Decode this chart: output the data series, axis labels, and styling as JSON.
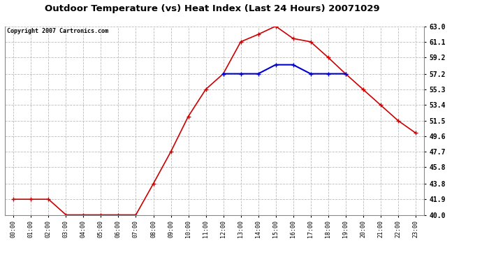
{
  "title": "Outdoor Temperature (vs) Heat Index (Last 24 Hours) 20071029",
  "copyright": "Copyright 2007 Cartronics.com",
  "x_labels": [
    "00:00",
    "01:00",
    "02:00",
    "03:00",
    "04:00",
    "05:00",
    "06:00",
    "07:00",
    "08:00",
    "09:00",
    "10:00",
    "11:00",
    "12:00",
    "13:00",
    "14:00",
    "15:00",
    "16:00",
    "17:00",
    "18:00",
    "19:00",
    "20:00",
    "21:00",
    "22:00",
    "23:00"
  ],
  "temp_red": [
    41.9,
    41.9,
    41.9,
    40.0,
    40.0,
    40.0,
    40.0,
    40.0,
    43.8,
    47.7,
    52.0,
    55.3,
    57.2,
    61.1,
    62.0,
    63.0,
    61.5,
    61.1,
    59.2,
    57.2,
    55.3,
    53.4,
    51.5,
    50.0
  ],
  "heat_blue": [
    null,
    null,
    null,
    null,
    null,
    null,
    null,
    null,
    null,
    null,
    null,
    null,
    57.2,
    57.2,
    57.2,
    58.3,
    58.3,
    57.2,
    57.2,
    57.2,
    null,
    null,
    null,
    null
  ],
  "y_ticks": [
    40.0,
    41.9,
    43.8,
    45.8,
    47.7,
    49.6,
    51.5,
    53.4,
    55.3,
    57.2,
    59.2,
    61.1,
    63.0
  ],
  "y_min": 40.0,
  "y_max": 63.0,
  "bg_color": "#ffffff",
  "plot_bg_color": "#ffffff",
  "grid_color": "#bbbbbb",
  "red_color": "#cc0000",
  "blue_color": "#0000cc",
  "title_fontsize": 9.5,
  "copyright_fontsize": 6.0
}
